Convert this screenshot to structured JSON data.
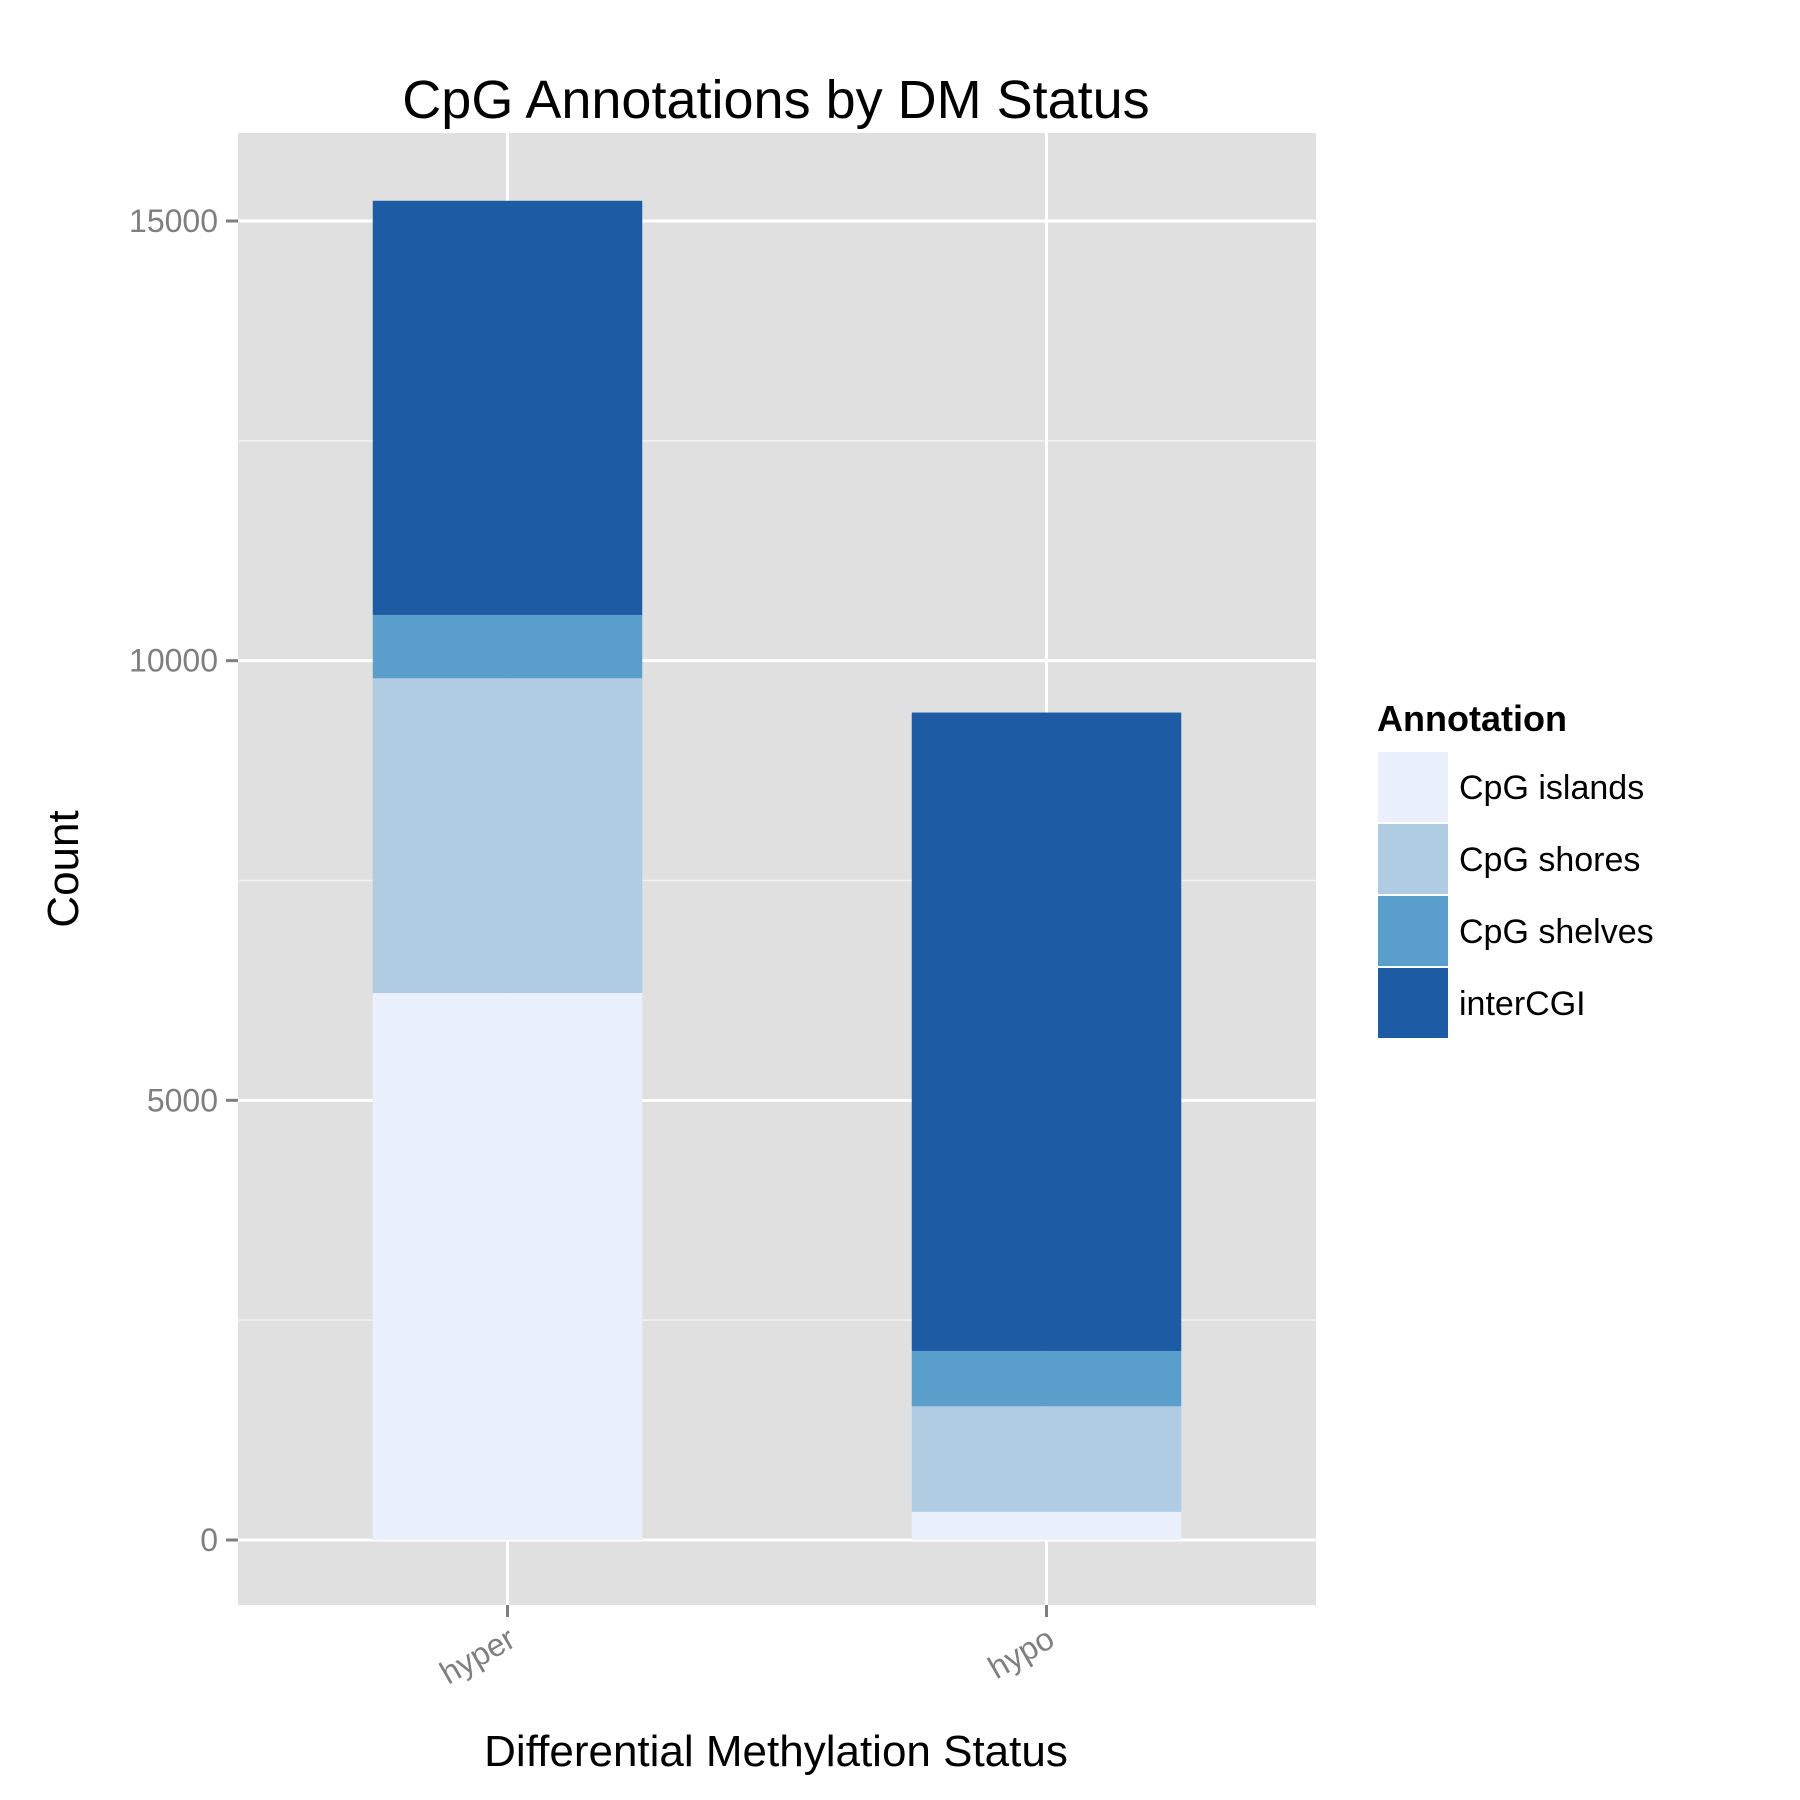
{
  "chart_data": {
    "type": "bar",
    "stacked": true,
    "title": "CpG Annotations by DM Status",
    "xlabel": "Differential Methylation Status",
    "ylabel": "Count",
    "categories": [
      "hyper",
      "hypo"
    ],
    "ylim": [
      -1500,
      16000
    ],
    "yticks": [
      0,
      5000,
      10000,
      15000
    ],
    "ytick_labels": [
      "0",
      "5000",
      "10000",
      "15000"
    ],
    "grid": true,
    "legend": {
      "title": "Annotation",
      "placement": "right"
    },
    "series": [
      {
        "name": "CpG islands",
        "color": "#eaf0fc",
        "values": [
          6220,
          320
        ]
      },
      {
        "name": "CpG shores",
        "color": "#afcce2",
        "values": [
          3580,
          1200
        ]
      },
      {
        "name": "CpG shelves",
        "color": "#5a9ecb",
        "values": [
          720,
          630
        ]
      },
      {
        "name": "interCGI",
        "color": "#1d5ca4",
        "values": [
          4710,
          7260
        ]
      }
    ]
  }
}
